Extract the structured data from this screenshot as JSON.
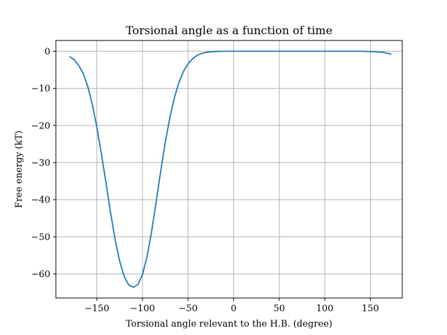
{
  "chart_data": {
    "type": "line",
    "title": "Torsional angle as a function of time",
    "xlabel": "Torsional angle relevant to the H.B. (degree)",
    "ylabel": "Free energy (kT)",
    "xlim": [
      -195,
      185
    ],
    "ylim": [
      -66.5,
      2.9
    ],
    "xticks": [
      -150,
      -100,
      -50,
      0,
      50,
      100,
      150
    ],
    "yticks": [
      0,
      -10,
      -20,
      -30,
      -40,
      -50,
      -60
    ],
    "xtick_labels": [
      "−150",
      "−100",
      "−50",
      "0",
      "50",
      "100",
      "150"
    ],
    "ytick_labels": [
      "0",
      "−10",
      "−20",
      "−30",
      "−40",
      "−50",
      "−60"
    ],
    "grid": true,
    "series_color": "#1f77b4",
    "series": [
      {
        "x": [
          -180,
          -175,
          -170,
          -165,
          -160,
          -155,
          -150,
          -145,
          -140,
          -135,
          -130,
          -125,
          -120,
          -115,
          -110,
          -105,
          -100,
          -95,
          -90,
          -85,
          -80,
          -75,
          -70,
          -65,
          -60,
          -55,
          -50,
          -45,
          -40,
          -35,
          -30,
          -25,
          -20,
          -15,
          -10,
          -5,
          0,
          10,
          20,
          40,
          60,
          80,
          100,
          120,
          140,
          150,
          160,
          165,
          170,
          173
        ],
        "y": [
          -1.4,
          -2.3,
          -3.8,
          -6.0,
          -9.5,
          -14.4,
          -20.5,
          -27.8,
          -35.5,
          -43.5,
          -50.7,
          -56.6,
          -60.7,
          -63.0,
          -63.6,
          -62.9,
          -60.2,
          -55.4,
          -48.6,
          -40.6,
          -32.3,
          -24.6,
          -17.9,
          -12.5,
          -8.4,
          -5.4,
          -3.4,
          -2.0,
          -1.1,
          -0.6,
          -0.3,
          -0.15,
          -0.07,
          -0.03,
          -0.01,
          0,
          0,
          0,
          0,
          0,
          0,
          0,
          0,
          0,
          0,
          -0.1,
          -0.2,
          -0.35,
          -0.6,
          -0.85
        ]
      }
    ]
  }
}
